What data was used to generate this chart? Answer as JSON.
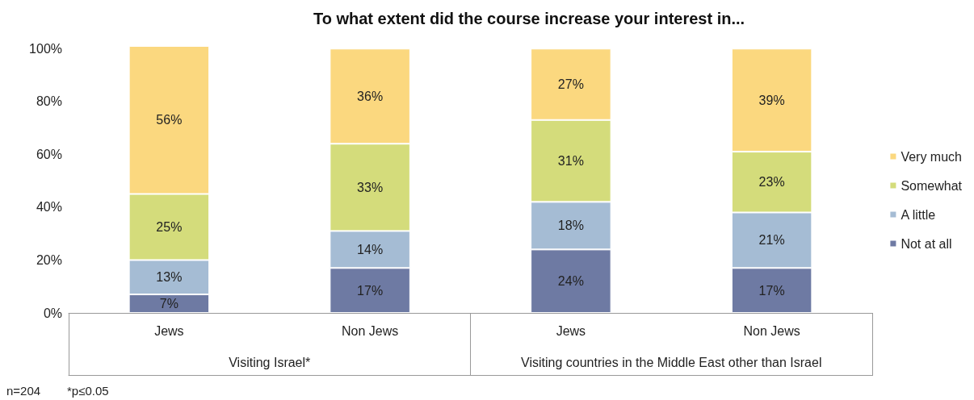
{
  "chart_data": {
    "type": "bar",
    "title": "To what extent did the course increase your interest in...",
    "categories": [
      "Jews",
      "Non Jews",
      "Jews",
      "Non Jews"
    ],
    "stacked": true,
    "ylim": [
      0,
      101
    ],
    "yticks": [
      {
        "value": 0,
        "label": "0%"
      },
      {
        "value": 20,
        "label": "20%"
      },
      {
        "value": 40,
        "label": "40%"
      },
      {
        "value": 60,
        "label": "60%"
      },
      {
        "value": 80,
        "label": "80%"
      },
      {
        "value": 100,
        "label": "100%"
      }
    ],
    "grid": false,
    "legend": "right",
    "series": [
      {
        "name": "Not at all",
        "color": "#6e7aa3",
        "values": [
          7,
          17,
          24,
          17
        ],
        "value_labels": [
          "7%",
          "17%",
          "24%",
          "17%"
        ]
      },
      {
        "name": "A little",
        "color": "#a5bcd4",
        "values": [
          13,
          14,
          18,
          21
        ],
        "value_labels": [
          "13%",
          "14%",
          "18%",
          "21%"
        ]
      },
      {
        "name": "Somewhat",
        "color": "#d4dc7b",
        "values": [
          25,
          33,
          31,
          23
        ],
        "value_labels": [
          "25%",
          "33%",
          "31%",
          "23%"
        ]
      },
      {
        "name": "Very much",
        "color": "#fbd87f",
        "values": [
          56,
          36,
          27,
          39
        ],
        "value_labels": [
          "56%",
          "36%",
          "27%",
          "39%"
        ]
      }
    ],
    "annotations": [
      "Visiting Israel*",
      "Visiting countries in the Middle East other than Israel",
      "n=204",
      "*p≤0.05"
    ]
  }
}
